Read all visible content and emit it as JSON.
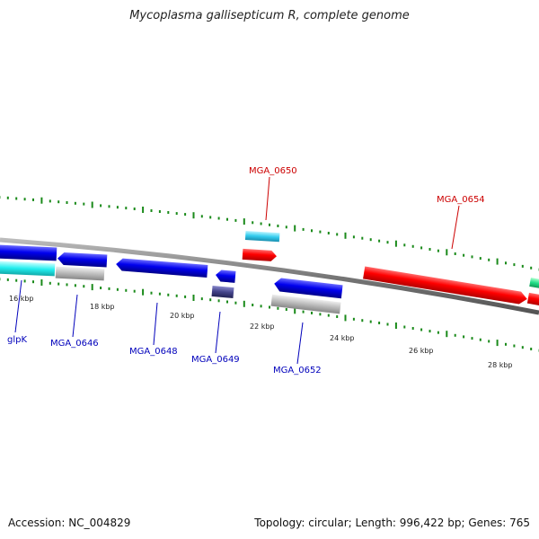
{
  "title": "Mycoplasma gallisepticum R, complete genome",
  "footer": {
    "accession": "Accession: NC_004829",
    "summary": "Topology: circular; Length: 996,422 bp; Genes: 765"
  },
  "colors": {
    "forward": "#ff0000",
    "reverse": "#0000ee",
    "label_forward": "#cc0000",
    "label_reverse": "#0000bb",
    "tick": "#1a8a1a",
    "backbone": "#8a8a8a"
  },
  "ticks": [
    "16 kbp",
    "18 kbp",
    "20 kbp",
    "22 kbp",
    "24 kbp",
    "26 kbp",
    "28 kbp"
  ],
  "gene_labels": {
    "glpK": "glpK",
    "mga0646": "MGA_0646",
    "mga0648": "MGA_0648",
    "mga0649": "MGA_0649",
    "mga0650": "MGA_0650",
    "mga0652": "MGA_0652",
    "mga0654": "MGA_0654"
  }
}
